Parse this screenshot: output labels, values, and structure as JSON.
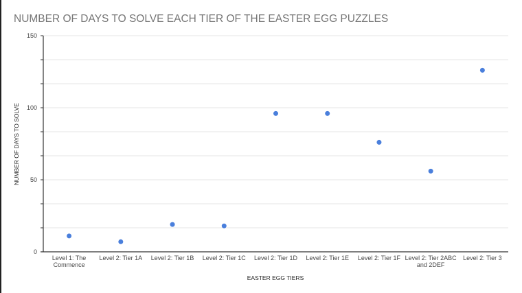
{
  "chart_data": {
    "type": "scatter",
    "title": "NUMBER OF DAYS TO SOLVE EACH TIER OF THE EASTER EGG PUZZLES",
    "xlabel": "EASTER EGG TIERS",
    "ylabel": "NUMBER OF DAYS TO SOLVE",
    "categories": [
      [
        "Level 1: The",
        "Commence"
      ],
      [
        "Level 2: Tier 1A"
      ],
      [
        "Level 2: Tier 1B"
      ],
      [
        "Level 2: Tier 1C"
      ],
      [
        "Level 2: Tier 1D"
      ],
      [
        "Level 2: Tier 1E"
      ],
      [
        "Level 2: Tier 1F"
      ],
      [
        "Level 2: Tier 2ABC",
        "and 2DEF"
      ],
      [
        "Level 2: Tier 3"
      ]
    ],
    "values": [
      11,
      7,
      19,
      18,
      96,
      96,
      76,
      56,
      126
    ],
    "ylim": [
      0,
      150
    ],
    "yticks": [
      0,
      50,
      100,
      150
    ],
    "minor_gridlines_per_major": 3,
    "grid": true,
    "point_color": "#4a7fdc"
  }
}
